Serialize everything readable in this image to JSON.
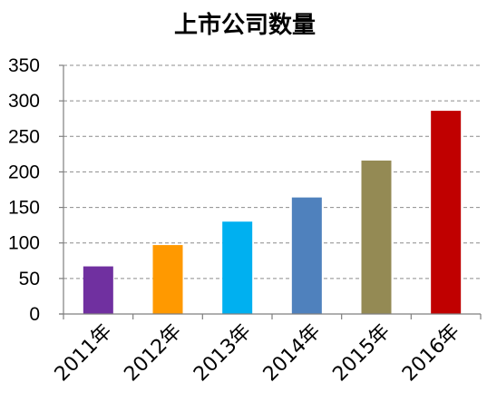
{
  "chart_data": {
    "type": "bar",
    "title": "上市公司数量",
    "xlabel": "",
    "ylabel": "",
    "categories": [
      "2011年",
      "2012年",
      "2013年",
      "2014年",
      "2015年",
      "2016年"
    ],
    "values": [
      67,
      97,
      130,
      164,
      216,
      286
    ],
    "colors": [
      "#7030A0",
      "#FF9900",
      "#00B0F0",
      "#4F81BD",
      "#948A54",
      "#C00000"
    ],
    "ylim": [
      0,
      350
    ],
    "yticks": [
      "0",
      "50",
      "100",
      "150",
      "200",
      "250",
      "300",
      "350"
    ],
    "grid": true,
    "legend": "none"
  }
}
